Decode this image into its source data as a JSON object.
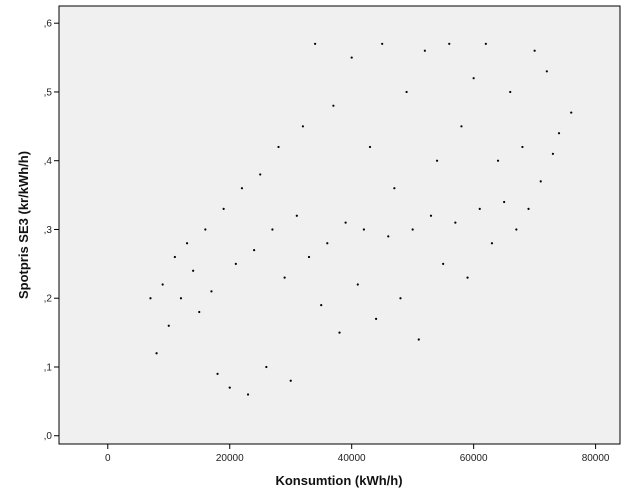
{
  "chart_data": {
    "type": "scatter",
    "title": "",
    "xlabel": "Konsumtion (kWh/h)",
    "ylabel": "Spotpris SE3 (kr/kWh/h)",
    "xlim": [
      -8000,
      84000
    ],
    "ylim": [
      -0.012,
      0.625
    ],
    "x_ticks": [
      0,
      20000,
      40000,
      60000,
      80000
    ],
    "x_tick_labels": [
      "0",
      "20000",
      "40000",
      "60000",
      "80000"
    ],
    "y_ticks": [
      0.0,
      0.1,
      0.2,
      0.3,
      0.4,
      0.5,
      0.6
    ],
    "y_tick_labels": [
      ",0",
      ",1",
      ",2",
      ",3",
      ",4",
      ",5",
      ",6"
    ],
    "grid": false,
    "legend": "none",
    "marker_color": "#000000",
    "plot_background": "#f0f0f0",
    "series": [
      {
        "points": [
          [
            7000,
            0.2
          ],
          [
            8000,
            0.12
          ],
          [
            9000,
            0.22
          ],
          [
            10000,
            0.16
          ],
          [
            11000,
            0.26
          ],
          [
            12000,
            0.2
          ],
          [
            13000,
            0.28
          ],
          [
            14000,
            0.24
          ],
          [
            15000,
            0.18
          ],
          [
            16000,
            0.3
          ],
          [
            17000,
            0.21
          ],
          [
            18000,
            0.09
          ],
          [
            19000,
            0.33
          ],
          [
            20000,
            0.07
          ],
          [
            21000,
            0.25
          ],
          [
            22000,
            0.36
          ],
          [
            23000,
            0.06
          ],
          [
            24000,
            0.27
          ],
          [
            25000,
            0.38
          ],
          [
            26000,
            0.1
          ],
          [
            27000,
            0.3
          ],
          [
            28000,
            0.42
          ],
          [
            29000,
            0.23
          ],
          [
            30000,
            0.08
          ],
          [
            31000,
            0.32
          ],
          [
            32000,
            0.45
          ],
          [
            33000,
            0.26
          ],
          [
            34000,
            0.57
          ],
          [
            35000,
            0.19
          ],
          [
            36000,
            0.28
          ],
          [
            37000,
            0.48
          ],
          [
            38000,
            0.15
          ],
          [
            39000,
            0.31
          ],
          [
            40000,
            0.55
          ],
          [
            41000,
            0.22
          ],
          [
            42000,
            0.3
          ],
          [
            43000,
            0.42
          ],
          [
            44000,
            0.17
          ],
          [
            45000,
            0.57
          ],
          [
            46000,
            0.29
          ],
          [
            47000,
            0.36
          ],
          [
            48000,
            0.2
          ],
          [
            49000,
            0.5
          ],
          [
            50000,
            0.3
          ],
          [
            51000,
            0.14
          ],
          [
            52000,
            0.56
          ],
          [
            53000,
            0.32
          ],
          [
            54000,
            0.4
          ],
          [
            55000,
            0.25
          ],
          [
            56000,
            0.57
          ],
          [
            57000,
            0.31
          ],
          [
            58000,
            0.45
          ],
          [
            59000,
            0.23
          ],
          [
            60000,
            0.52
          ],
          [
            61000,
            0.33
          ],
          [
            62000,
            0.57
          ],
          [
            63000,
            0.28
          ],
          [
            64000,
            0.4
          ],
          [
            65000,
            0.34
          ],
          [
            66000,
            0.5
          ],
          [
            67000,
            0.3
          ],
          [
            68000,
            0.42
          ],
          [
            69000,
            0.33
          ],
          [
            70000,
            0.56
          ],
          [
            71000,
            0.37
          ],
          [
            72000,
            0.53
          ],
          [
            73000,
            0.41
          ],
          [
            74000,
            0.44
          ],
          [
            76000,
            0.47
          ]
        ]
      }
    ]
  }
}
